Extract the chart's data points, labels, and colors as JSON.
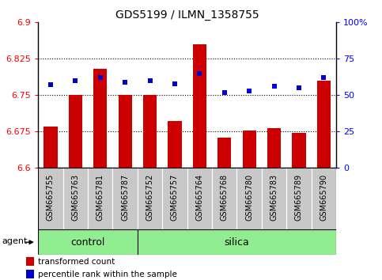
{
  "title": "GDS5199 / ILMN_1358755",
  "samples": [
    "GSM665755",
    "GSM665763",
    "GSM665781",
    "GSM665787",
    "GSM665752",
    "GSM665757",
    "GSM665764",
    "GSM665768",
    "GSM665780",
    "GSM665783",
    "GSM665789",
    "GSM665790"
  ],
  "groups": [
    "control",
    "control",
    "control",
    "control",
    "silica",
    "silica",
    "silica",
    "silica",
    "silica",
    "silica",
    "silica",
    "silica"
  ],
  "bar_values": [
    6.685,
    6.75,
    6.805,
    6.75,
    6.75,
    6.697,
    6.855,
    6.662,
    6.678,
    6.682,
    6.673,
    6.78
  ],
  "dot_values": [
    57,
    60,
    62,
    59,
    60,
    58,
    65,
    52,
    53,
    56,
    55,
    62
  ],
  "ylim_left": [
    6.6,
    6.9
  ],
  "ylim_right": [
    0,
    100
  ],
  "yticks_left": [
    6.6,
    6.675,
    6.75,
    6.825,
    6.9
  ],
  "yticks_right": [
    0,
    25,
    50,
    75,
    100
  ],
  "bar_color": "#cc0000",
  "dot_color": "#0000cc",
  "group_color": "#90ee90",
  "sample_box_color": "#c8c8c8",
  "bg_color": "#ffffff",
  "legend_items": [
    "transformed count",
    "percentile rank within the sample"
  ],
  "agent_label": "agent",
  "control_count": 4,
  "title_fontsize": 10,
  "axis_fontsize": 8,
  "label_fontsize": 7,
  "group_fontsize": 9
}
